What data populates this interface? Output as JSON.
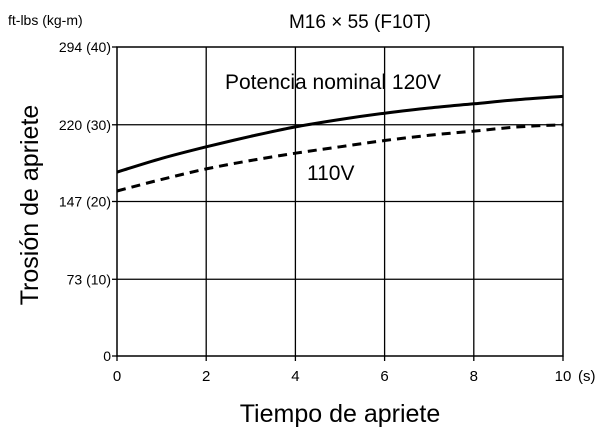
{
  "chart_data": {
    "type": "line",
    "title": "M16 × 55 (F10T)",
    "unit_label": "ft-lbs (kg-m)",
    "xlabel": "Tiempo de apriete",
    "ylabel": "Trosión de apriete",
    "x_unit": "(s)",
    "xlim": [
      0,
      10
    ],
    "ylim": [
      0,
      294
    ],
    "x_ticks": [
      {
        "value": 0,
        "label": "0"
      },
      {
        "value": 2,
        "label": "2"
      },
      {
        "value": 4,
        "label": "4"
      },
      {
        "value": 6,
        "label": "6"
      },
      {
        "value": 8,
        "label": "8"
      },
      {
        "value": 10,
        "label": "10"
      }
    ],
    "y_ticks": [
      {
        "value": 0,
        "label": "0"
      },
      {
        "value": 73,
        "label": "73 (10)"
      },
      {
        "value": 147,
        "label": "147 (20)"
      },
      {
        "value": 220,
        "label": "220 (30)"
      },
      {
        "value": 294,
        "label": "294 (40)"
      }
    ],
    "grid": true,
    "series": [
      {
        "name": "Potencia nominal 120V",
        "style": "solid",
        "x": [
          0,
          1,
          2,
          3,
          4,
          5,
          6,
          7,
          8,
          9,
          10
        ],
        "y": [
          175,
          188,
          199,
          209,
          218,
          225,
          231,
          236,
          240,
          244,
          247
        ]
      },
      {
        "name": "110V",
        "style": "dashed",
        "x": [
          0,
          1,
          2,
          3,
          4,
          5,
          6,
          7,
          8,
          9,
          10
        ],
        "y": [
          157,
          168,
          178,
          186,
          193,
          199,
          205,
          210,
          214,
          218,
          220
        ]
      }
    ]
  }
}
